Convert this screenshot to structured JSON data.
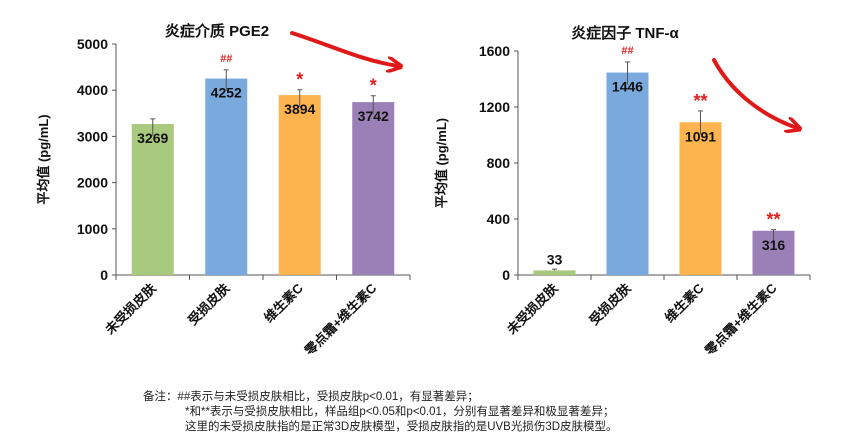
{
  "chart_data": [
    {
      "type": "bar",
      "title": "炎症介质 PGE2",
      "ylabel": "平均值 (pg/mL)",
      "xlabel": "",
      "categories": [
        "未受损皮肤",
        "受损皮肤",
        "维生素C",
        "零点霜+维生素C"
      ],
      "values": [
        3269,
        4252,
        3894,
        3742
      ],
      "error_upper": [
        3380,
        4440,
        4010,
        3880
      ],
      "significance": [
        "",
        "##",
        "*",
        "*"
      ],
      "colors": [
        "#a9c97f",
        "#7aa9dd",
        "#fdb44e",
        "#9a80b6"
      ],
      "ylim": [
        0,
        5000
      ],
      "yticks": [
        0,
        1000,
        2000,
        3000,
        4000,
        5000
      ],
      "grid": false,
      "annotation": "red trend arrow pointing down-right"
    },
    {
      "type": "bar",
      "title": "炎症因子 TNF-α",
      "ylabel": "平均值 (pg/mL)",
      "xlabel": "",
      "categories": [
        "未受损皮肤",
        "受损皮肤",
        "维生素C",
        "零点霜+维生素C"
      ],
      "values": [
        33,
        1446,
        1091,
        316
      ],
      "error_upper": [
        42,
        1522,
        1172,
        324
      ],
      "significance": [
        "",
        "##",
        "**",
        "**"
      ],
      "colors": [
        "#a9c97f",
        "#7aa9dd",
        "#fdb44e",
        "#9a80b6"
      ],
      "ylim": [
        0,
        1600
      ],
      "yticks": [
        0,
        400,
        800,
        1200,
        1600
      ],
      "grid": false,
      "annotation": "red trend arrow pointing down-right"
    }
  ],
  "notes": {
    "line1": "备注：##表示与未受损皮肤相比，受损皮肤p<0.01，有显著差异；",
    "line2": "*和**表示与受损皮肤相比，样品组p<0.05和p<0.01，分别有显著差异和极显著差异；",
    "line3": "这里的未受损皮肤指的是正常3D皮肤模型，受损皮肤指的是UVB光损伤3D皮肤模型。"
  },
  "significance_color": "#e02020",
  "arrow_color": "#e01818"
}
